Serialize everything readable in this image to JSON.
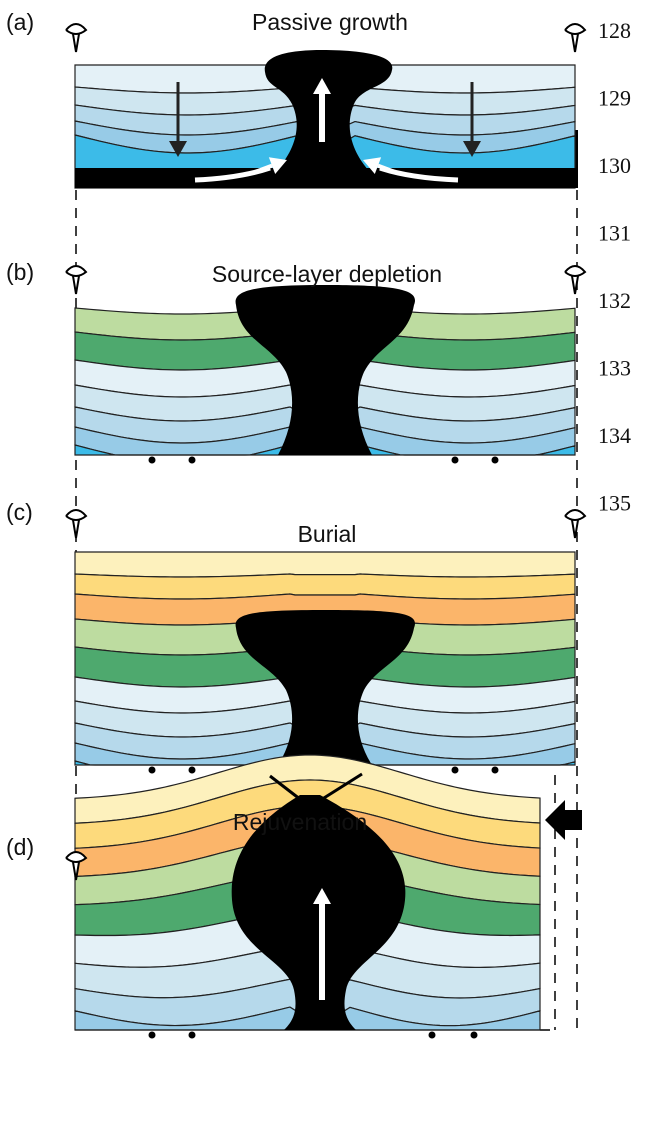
{
  "panels": [
    {
      "label": "(a)",
      "title": "Passive growth"
    },
    {
      "label": "(b)",
      "title": "Source-layer depletion"
    },
    {
      "label": "(c)",
      "title": "Burial"
    },
    {
      "label": "(d)",
      "title": "Rejuvenation"
    }
  ],
  "line_numbers": [
    128,
    129,
    130,
    131,
    132,
    133,
    134,
    135
  ]
}
